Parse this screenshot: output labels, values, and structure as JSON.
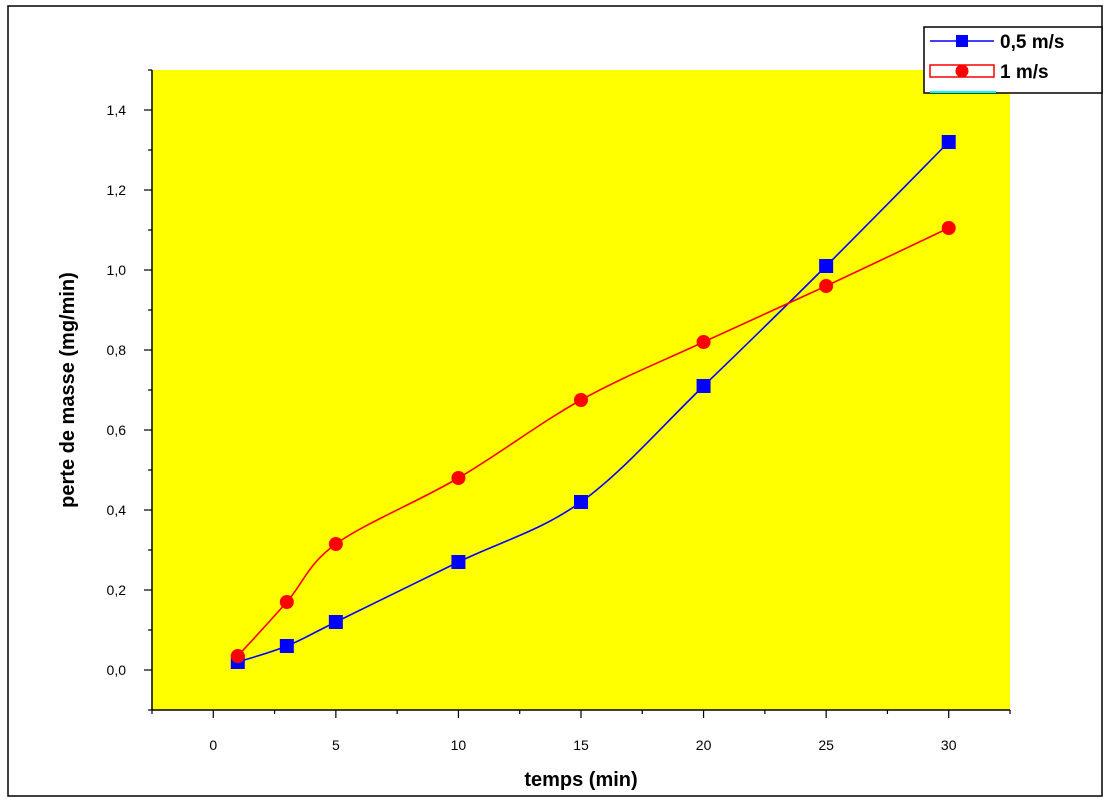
{
  "chart_data": {
    "type": "line",
    "title": "",
    "xlabel": "temps (min)",
    "ylabel": "perte de masse (mg/min)",
    "xlim": [
      -2.5,
      32.5
    ],
    "ylim": [
      -0.1,
      1.5
    ],
    "x_ticks": [
      "0",
      "5",
      "10",
      "15",
      "20",
      "25",
      "30"
    ],
    "y_ticks": [
      "0,0",
      "0,2",
      "0,4",
      "0,6",
      "0,8",
      "1,0",
      "1,2",
      "1,4"
    ],
    "legend_position": "top-right",
    "plot_background": "#ffff00",
    "series": [
      {
        "name": "0,5 m/s",
        "color": "#0000ff",
        "marker": "square",
        "x": [
          1,
          3,
          5,
          10,
          15,
          20,
          25,
          30
        ],
        "values": [
          0.02,
          0.06,
          0.12,
          0.27,
          0.42,
          0.71,
          1.01,
          1.32
        ]
      },
      {
        "name": "1 m/s",
        "color": "#ff0000",
        "marker": "circle",
        "x": [
          1,
          3,
          5,
          10,
          15,
          20,
          25,
          30
        ],
        "values": [
          0.035,
          0.17,
          0.315,
          0.48,
          0.675,
          0.82,
          0.96,
          1.105
        ]
      }
    ]
  }
}
